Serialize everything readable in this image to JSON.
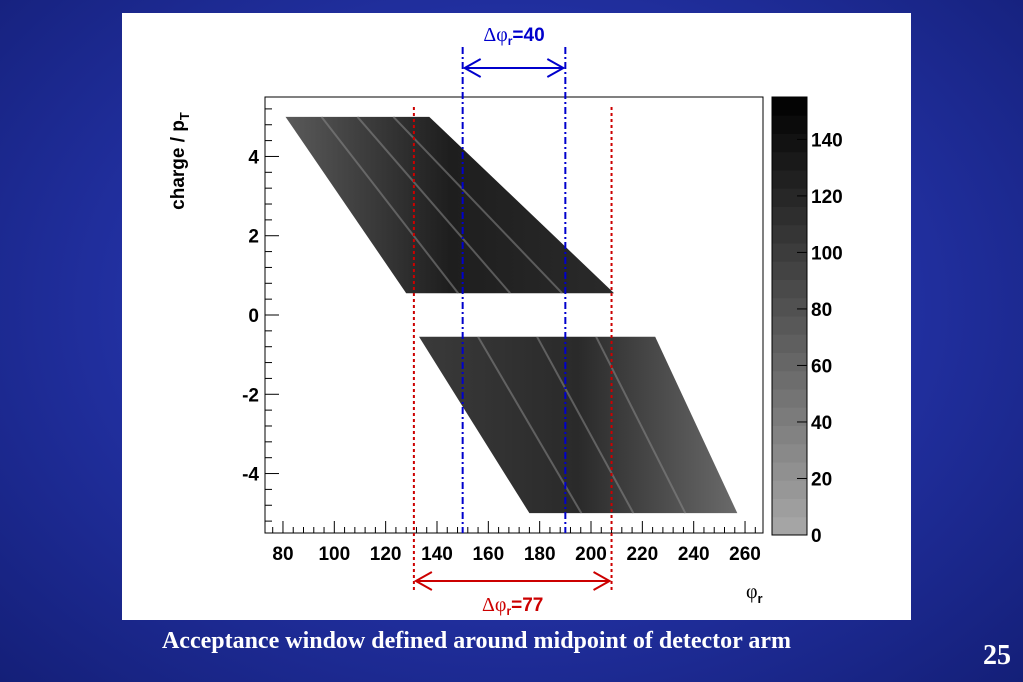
{
  "slide": {
    "caption": "Acceptance window defined around midpoint of detector arm",
    "page_number": "25"
  },
  "chart_data": {
    "type": "heatmap",
    "xlabel": "φr",
    "xlabel_main": "φ",
    "xlabel_sub": "r",
    "ylabel": "charge / pT",
    "ylabel_main": "charge / p",
    "ylabel_sub": "T",
    "xlim": [
      73,
      267
    ],
    "ylim": [
      -5.5,
      5.5
    ],
    "x_ticks": [
      80,
      100,
      120,
      140,
      160,
      180,
      200,
      220,
      240,
      260
    ],
    "y_ticks": [
      4,
      2,
      0,
      -2,
      -4
    ],
    "colorbar": {
      "range": [
        0,
        155
      ],
      "ticks": [
        0,
        20,
        40,
        60,
        80,
        100,
        120,
        140
      ]
    },
    "bands": [
      {
        "name": "positive",
        "y_range": [
          0.55,
          5.0
        ],
        "x_left_at_ymax": 81,
        "x_left_at_ymin": 128,
        "x_right_at_ymax": 137,
        "x_right_at_ymin": 209
      },
      {
        "name": "negative",
        "y_range": [
          -5.0,
          -0.55
        ],
        "x_left_at_ymax": 133,
        "x_left_at_ymin": 176,
        "x_right_at_ymax": 225,
        "x_right_at_ymin": 257
      }
    ],
    "annotations": [
      {
        "label": "Δφr=40",
        "prefix": "Δφ",
        "sub": "r",
        "suffix": "=40",
        "x_range": [
          150,
          190
        ],
        "color": "#0000cc",
        "style": "dash-dot",
        "placement": "top"
      },
      {
        "label": "Δφr=77",
        "prefix": "Δφ",
        "sub": "r",
        "suffix": "=77",
        "x_range": [
          131,
          208
        ],
        "color": "#cc0000",
        "style": "dotted",
        "placement": "bottom"
      }
    ]
  }
}
